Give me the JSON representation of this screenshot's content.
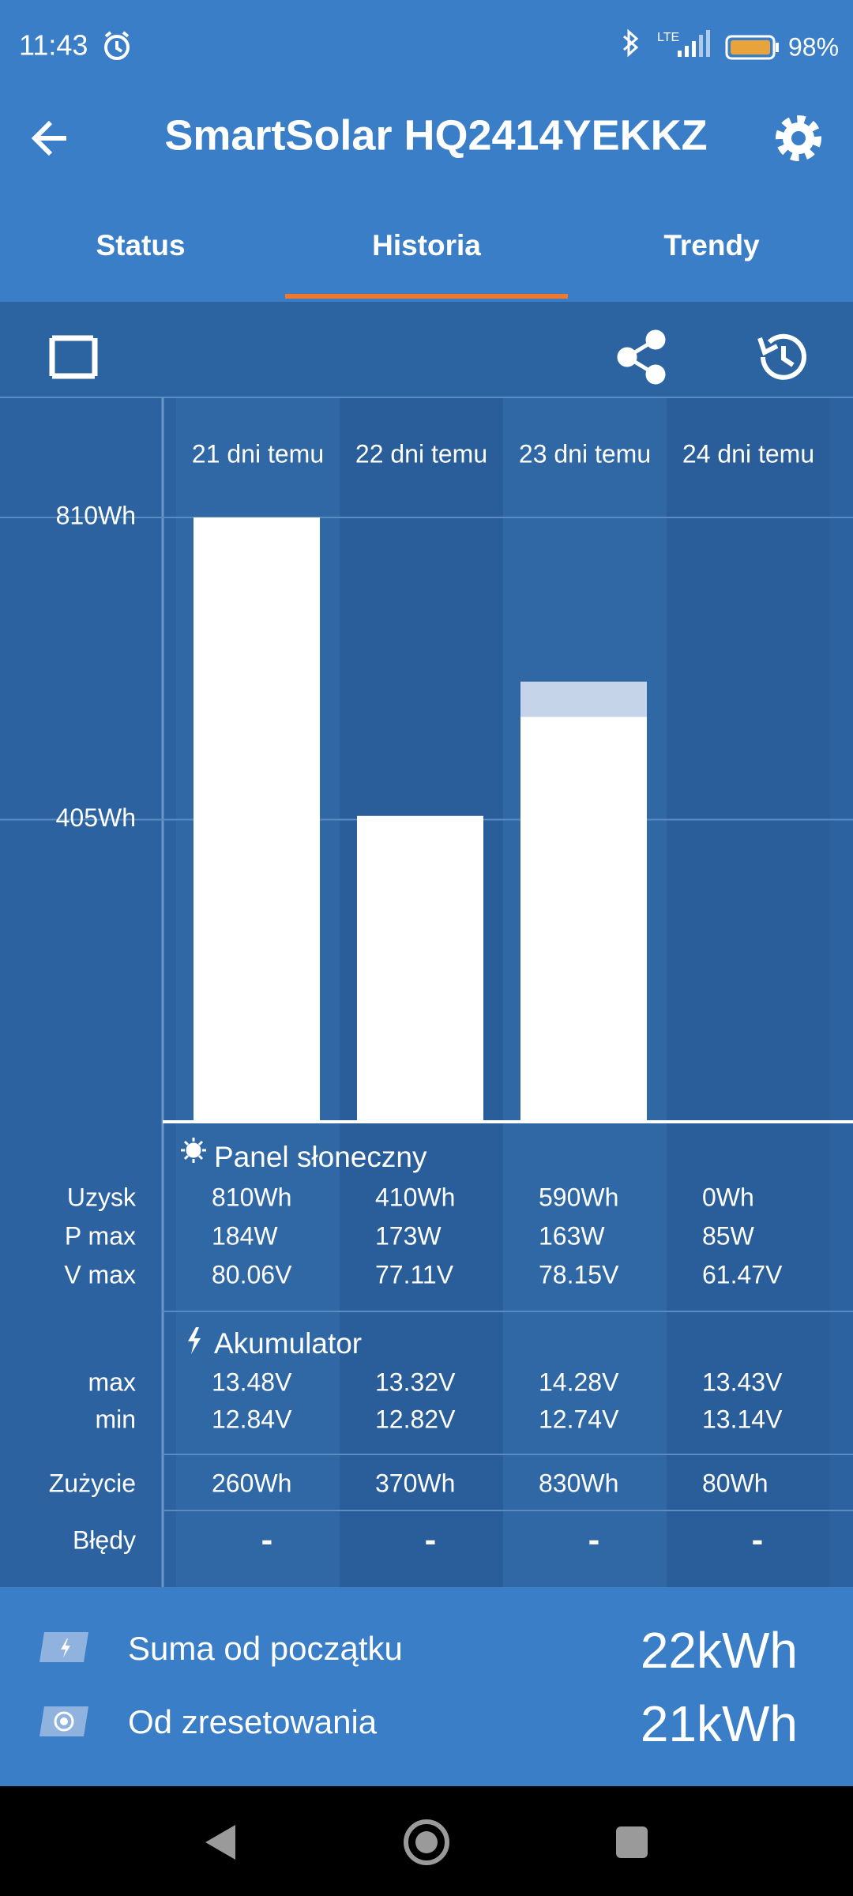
{
  "status_bar": {
    "time": "11:43",
    "network": "LTE",
    "battery": "98%"
  },
  "header": {
    "title": "SmartSolar HQ2414YEKKZ"
  },
  "tabs": [
    "Status",
    "Historia",
    "Trendy"
  ],
  "chart_data": {
    "type": "bar",
    "categories": [
      "21 dni temu",
      "22 dni temu",
      "23 dni temu",
      "24 dni temu"
    ],
    "series": [
      {
        "color": "#ffffff",
        "values": [
          810,
          410,
          543,
          0
        ]
      },
      {
        "color": "#c5d4e8",
        "values": [
          0,
          0,
          47,
          0
        ]
      }
    ],
    "ylim": [
      0,
      810
    ],
    "yticks": [
      {
        "value": 405,
        "label": "405Wh"
      },
      {
        "value": 810,
        "label": "810Wh"
      }
    ]
  },
  "table": {
    "sections": [
      {
        "title": "Panel słoneczny",
        "rows": [
          {
            "label": "Uzysk",
            "values": [
              "810Wh",
              "410Wh",
              "590Wh",
              "0Wh"
            ]
          },
          {
            "label": "P max",
            "values": [
              "184W",
              "173W",
              "163W",
              "85W"
            ]
          },
          {
            "label": "V max",
            "values": [
              "80.06V",
              "77.11V",
              "78.15V",
              "61.47V"
            ]
          }
        ]
      },
      {
        "title": "Akumulator",
        "rows": [
          {
            "label": "max",
            "values": [
              "13.48V",
              "13.32V",
              "14.28V",
              "13.43V"
            ]
          },
          {
            "label": "min",
            "values": [
              "12.84V",
              "12.82V",
              "12.74V",
              "13.14V"
            ]
          }
        ]
      },
      {
        "rows": [
          {
            "label": "Zużycie",
            "values": [
              "260Wh",
              "370Wh",
              "830Wh",
              "80Wh"
            ]
          }
        ]
      },
      {
        "rows": [
          {
            "label": "Błędy",
            "values": [
              "-",
              "-",
              "-",
              "-"
            ]
          }
        ]
      }
    ]
  },
  "summary": [
    {
      "label": "Suma od początku",
      "value": "22kWh"
    },
    {
      "label": "Od zresetowania",
      "value": "21kWh"
    }
  ]
}
